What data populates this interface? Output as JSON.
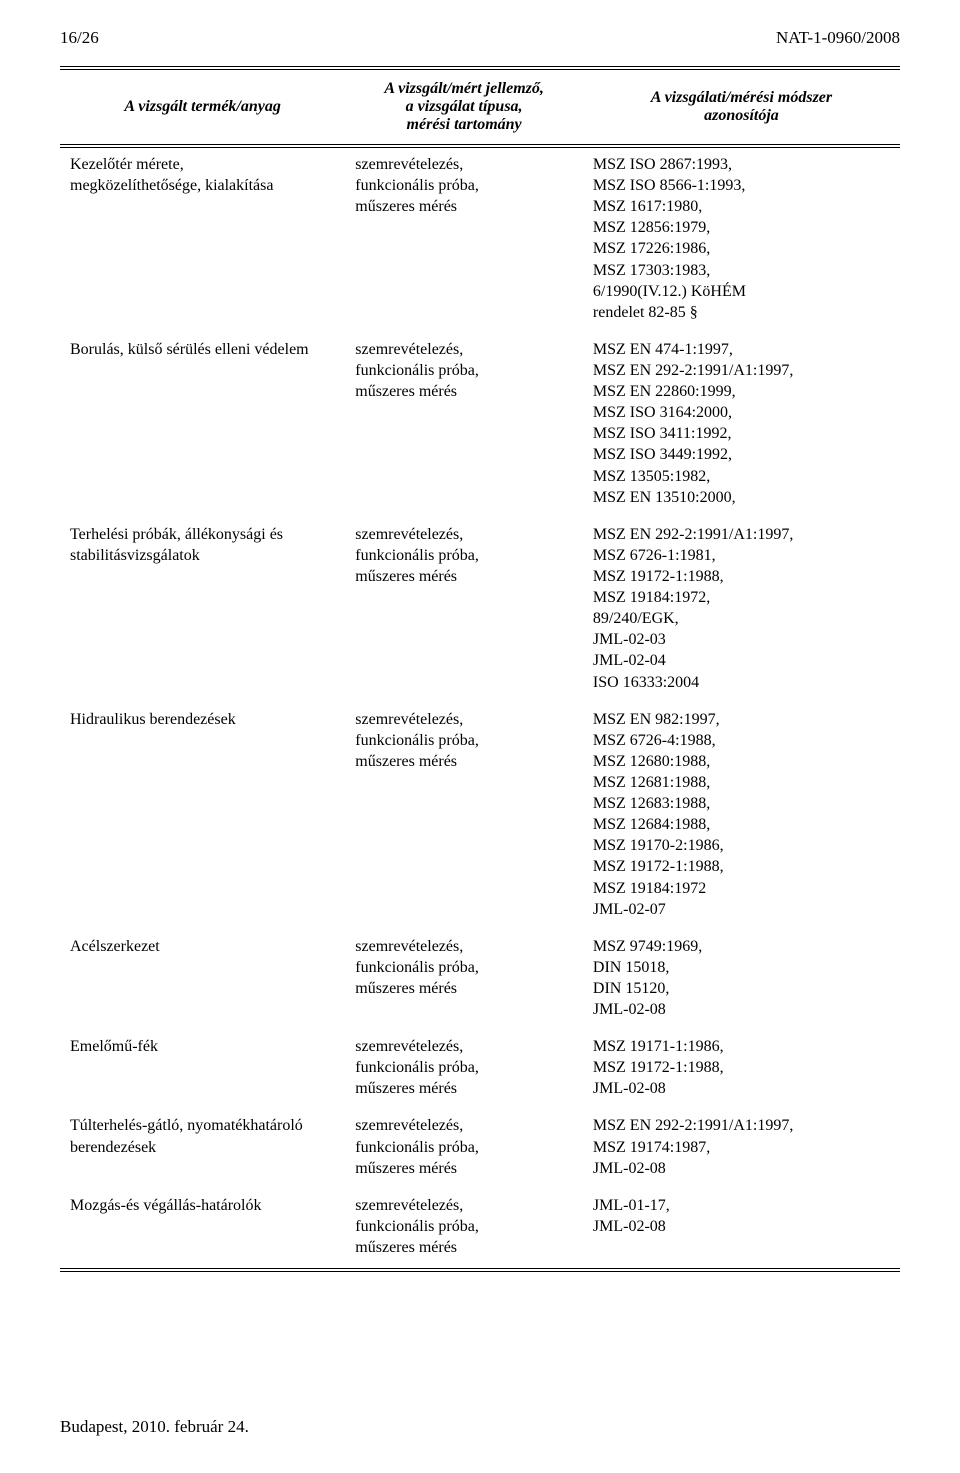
{
  "header": {
    "page_num": "16/26",
    "doc_code": "NAT-1-0960/2008"
  },
  "table": {
    "columns": [
      "A vizsgált termék/anyag",
      "A vizsgált/mért jellemző,\na vizsgálat típusa,\nmérési tartomány",
      "A vizsgálati/mérési módszer\nazonosítója"
    ],
    "rows": [
      {
        "product": "Kezelőtér mérete,\nmegközelíthetősége, kialakítása",
        "method": "szemrevételezés,\nfunkcionális próba,\nműszeres mérés",
        "standards": "MSZ ISO 2867:1993,\nMSZ ISO 8566-1:1993,\nMSZ 1617:1980,\nMSZ 12856:1979,\nMSZ 17226:1986,\nMSZ 17303:1983,\n6/1990(IV.12.) KöHÉM\nrendelet 82-85 §"
      },
      {
        "product": "Borulás, külső sérülés elleni védelem",
        "method": "szemrevételezés,\nfunkcionális próba,\nműszeres mérés",
        "standards": "MSZ EN 474-1:1997,\nMSZ EN 292-2:1991/A1:1997,\nMSZ EN 22860:1999,\nMSZ ISO 3164:2000,\nMSZ ISO 3411:1992,\nMSZ ISO 3449:1992,\nMSZ 13505:1982,\nMSZ EN 13510:2000,"
      },
      {
        "product": "Terhelési próbák, állékonysági és\nstabilitásvizsgálatok",
        "method": "szemrevételezés,\nfunkcionális próba,\nműszeres mérés",
        "standards": "MSZ EN 292-2:1991/A1:1997,\nMSZ 6726-1:1981,\nMSZ 19172-1:1988,\nMSZ 19184:1972,\n89/240/EGK,\nJML-02-03\nJML-02-04\nISO 16333:2004"
      },
      {
        "product": "Hidraulikus berendezések",
        "method": "szemrevételezés,\nfunkcionális próba,\nműszeres mérés",
        "standards": "MSZ EN 982:1997,\nMSZ 6726-4:1988,\nMSZ 12680:1988,\nMSZ 12681:1988,\nMSZ 12683:1988,\nMSZ 12684:1988,\nMSZ 19170-2:1986,\nMSZ 19172-1:1988,\nMSZ 19184:1972\nJML-02-07"
      },
      {
        "product": "Acélszerkezet",
        "method": "szemrevételezés,\nfunkcionális próba,\nműszeres mérés",
        "standards": "MSZ 9749:1969,\nDIN 15018,\nDIN 15120,\nJML-02-08"
      },
      {
        "product": "Emelőmű-fék",
        "method": "szemrevételezés,\nfunkcionális próba,\nműszeres mérés",
        "standards": "MSZ 19171-1:1986,\nMSZ 19172-1:1988,\nJML-02-08"
      },
      {
        "product": "Túlterhelés-gátló, nyomatékhatároló\nberendezések",
        "method": "szemrevételezés,\nfunkcionális próba,\nműszeres mérés",
        "standards": "MSZ EN 292-2:1991/A1:1997,\nMSZ 19174:1987,\nJML-02-08"
      },
      {
        "product": "Mozgás-és végállás-határolók",
        "method": "szemrevételezés,\nfunkcionális próba,\nműszeres mérés",
        "standards": "JML-01-17,\nJML-02-08"
      }
    ]
  },
  "footer": {
    "text": "Budapest, 2010. február 24."
  }
}
